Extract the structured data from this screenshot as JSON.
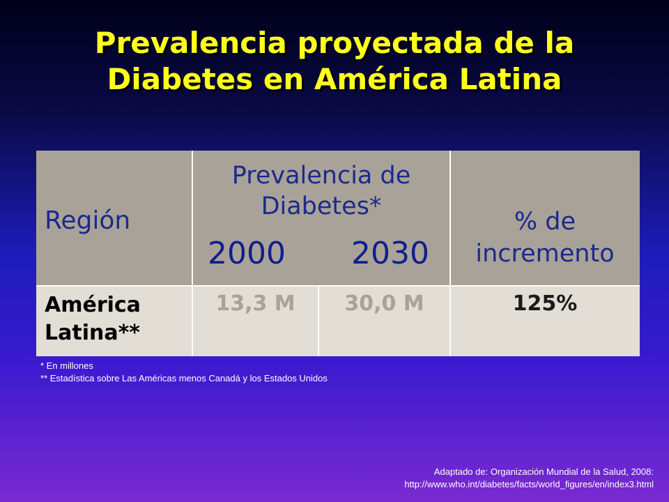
{
  "title": {
    "line1": "Prevalencia proyectada de la",
    "line2": "Diabetes en América Latina"
  },
  "table": {
    "header": {
      "region": "Región",
      "prevalence_line1": "Prevalencia de",
      "prevalence_line2": "Diabetes*",
      "year_2000": "2000",
      "year_2030": "2030",
      "increase_line1": "% de",
      "increase_line2": "incremento"
    },
    "rows": [
      {
        "region_line1": "América",
        "region_line2": "Latina**",
        "value_2000": "13,3 M",
        "value_2030": "30,0 M",
        "increase": "125%"
      }
    ]
  },
  "notes": [
    "* En millones",
    "** Estadística sobre Las Américas menos Canadá y los Estados Unidos"
  ],
  "source": {
    "line1": "Adaptado de:  Organización Mundial de la Salud, 2008:",
    "line2": "http://www.who.int/diabetes/facts/world_figures/en/index3.html"
  },
  "colors": {
    "title": "#ffff1e",
    "header_bg": "#a9a298",
    "row_bg": "#e2ddd5",
    "header_text": "#1a2a8c"
  }
}
